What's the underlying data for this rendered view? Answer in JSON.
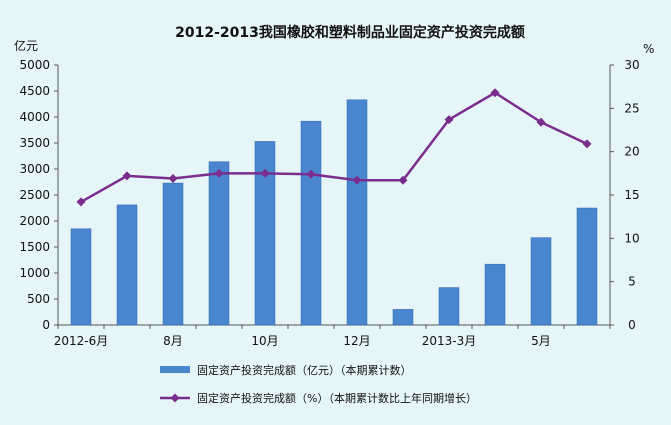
{
  "colors": {
    "background": "#e6f6f8",
    "bar": "#4a86cf",
    "bar_edge": "#2f63a6",
    "line": "#7b2d8e",
    "axis": "#555555",
    "grid": "#b8c6cc"
  },
  "chart_data": {
    "type": "bar+line",
    "title": "2012-2013我国橡胶和塑料制品业固定资产投资完成额",
    "y_left_unit": "亿元",
    "y_right_unit": "%",
    "y_left_lim": [
      0,
      5000
    ],
    "y_left_ticks": [
      "0",
      "500",
      "1000",
      "1500",
      "2000",
      "2500",
      "3000",
      "3500",
      "4000",
      "4500",
      "5000"
    ],
    "y_right_lim": [
      0,
      30
    ],
    "y_right_ticks": [
      "0",
      "5",
      "10",
      "15",
      "20",
      "25",
      "30"
    ],
    "grid": false,
    "x_tick_labels": [
      {
        "index": 0,
        "label": "2012-6月"
      },
      {
        "index": 2,
        "label": "8月"
      },
      {
        "index": 4,
        "label": "10月"
      },
      {
        "index": 6,
        "label": "12月"
      },
      {
        "index": 8,
        "label": "2013-3月"
      },
      {
        "index": 10,
        "label": "5月"
      }
    ],
    "series": [
      {
        "name": "固定资产投资完成额（亿元）（本期累计数）",
        "type": "bar",
        "axis": "left",
        "values": [
          1850,
          2310,
          2730,
          3140,
          3530,
          3920,
          4330,
          300,
          720,
          1170,
          1680,
          2250
        ]
      },
      {
        "name": "固定资产投资完成额（%）（本期累计数比上年同期增长）",
        "type": "line",
        "axis": "right",
        "values": [
          14.2,
          17.2,
          16.9,
          17.5,
          17.5,
          17.4,
          16.7,
          16.7,
          23.7,
          26.8,
          23.4,
          20.9
        ]
      }
    ],
    "legend_placement": "bottom"
  }
}
